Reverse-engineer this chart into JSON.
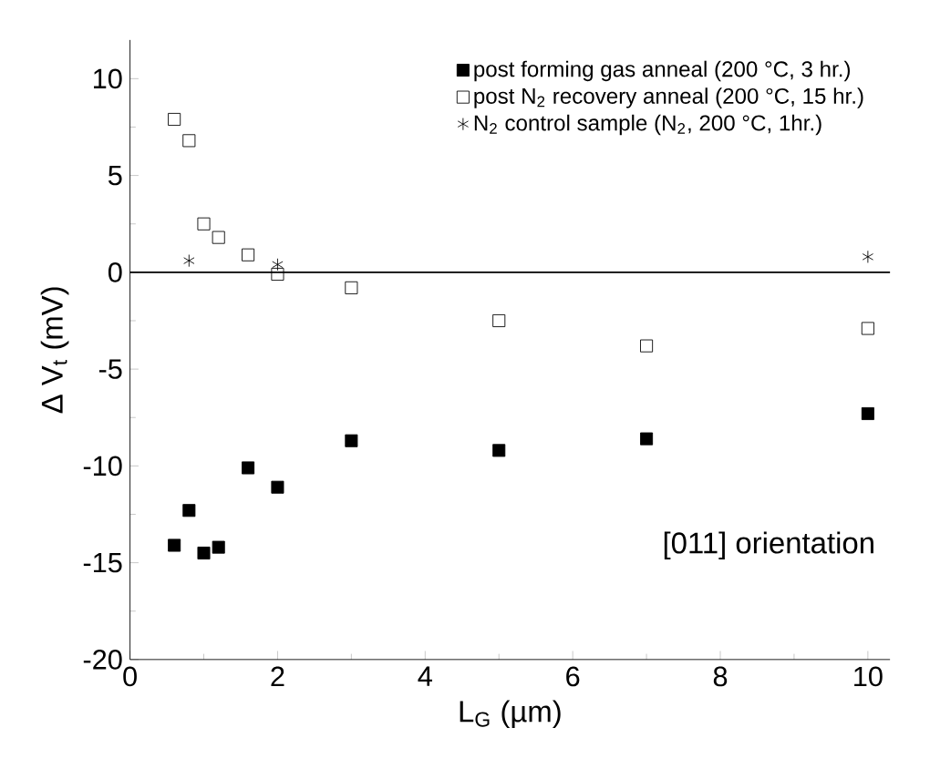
{
  "chart_data": {
    "type": "scatter",
    "xlabel": "L$_{G}$  (µm)",
    "ylabel": "Δ V$_{t}$ (mV)",
    "xlim": [
      0,
      10.3
    ],
    "ylim": [
      -20,
      12
    ],
    "xticks": [
      0,
      2,
      4,
      6,
      8,
      10
    ],
    "yticks": [
      -20,
      -15,
      -10,
      -5,
      0,
      5,
      10
    ],
    "legend": "top right",
    "grid": false,
    "ref_lines": [
      {
        "axis": "y",
        "value": 0,
        "color": "#000000"
      }
    ],
    "annotations": [
      "[011] orientation"
    ],
    "series": [
      {
        "name": "post forming gas anneal (200 °C, 3 hr.)",
        "color": "#000000",
        "marker": "square",
        "x": [
          0.6,
          0.8,
          1.0,
          1.2,
          1.6,
          2,
          3,
          5,
          7,
          10
        ],
        "values": [
          -14.1,
          -12.3,
          -14.5,
          -14.2,
          -10.1,
          -11.1,
          -8.7,
          -9.2,
          -8.6,
          -7.3
        ]
      },
      {
        "name": "post N$_{2}$ recovery anneal (200 °C, 15 hr.)",
        "color": "#000000",
        "marker": "square-open",
        "x": [
          0.6,
          0.8,
          1.0,
          1.2,
          1.6,
          2,
          3,
          5,
          7,
          10
        ],
        "values": [
          7.9,
          6.8,
          2.5,
          1.8,
          0.9,
          -0.1,
          -0.8,
          -2.5,
          -3.8,
          -2.9
        ]
      },
      {
        "name": "N$_{2}$ control sample (N$_{2}$, 200 °C, 1hr.)",
        "color": "#000000",
        "marker": "cross",
        "x": [
          0.8,
          2,
          10
        ],
        "values": [
          0.6,
          0.4,
          0.8
        ]
      }
    ]
  }
}
